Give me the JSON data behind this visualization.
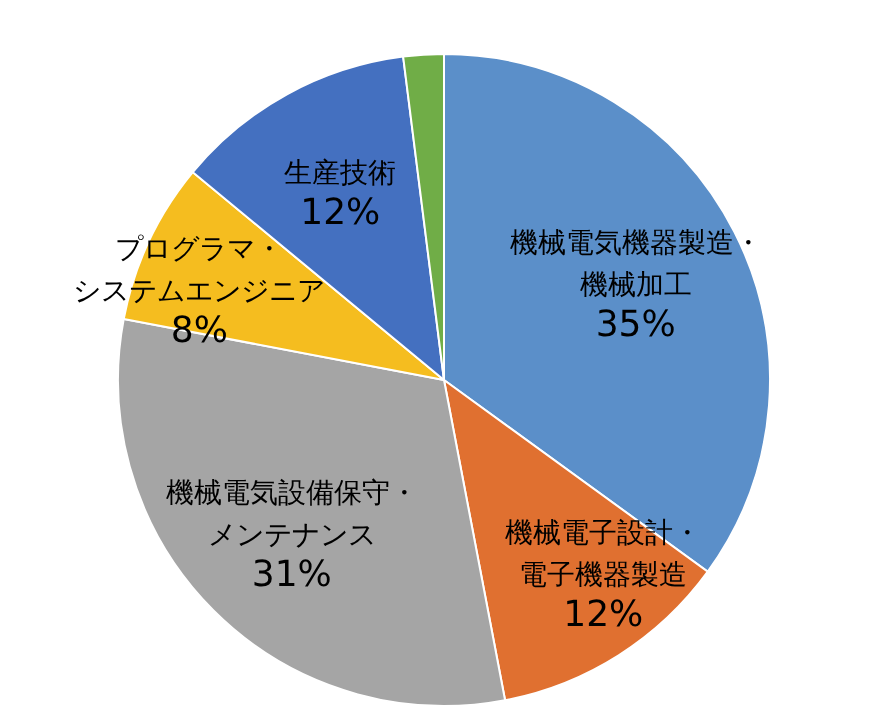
{
  "chart_data": {
    "type": "pie",
    "categories": [
      "機械電気機器製造・機械加工",
      "機械電子設計・電子機器製造",
      "機械電気設備保守・メンテナンス",
      "プログラマ・システムエンジニア",
      "生産技術",
      null
    ],
    "values": [
      35,
      12,
      31,
      8,
      12,
      2
    ],
    "value_labels": [
      "35%",
      "12%",
      "31%",
      "8%",
      "12%",
      null
    ],
    "colors": [
      "#5b8fc9",
      "#e07030",
      "#a5a5a5",
      "#f5bd1f",
      "#4470c0",
      "#70ad47"
    ]
  }
}
